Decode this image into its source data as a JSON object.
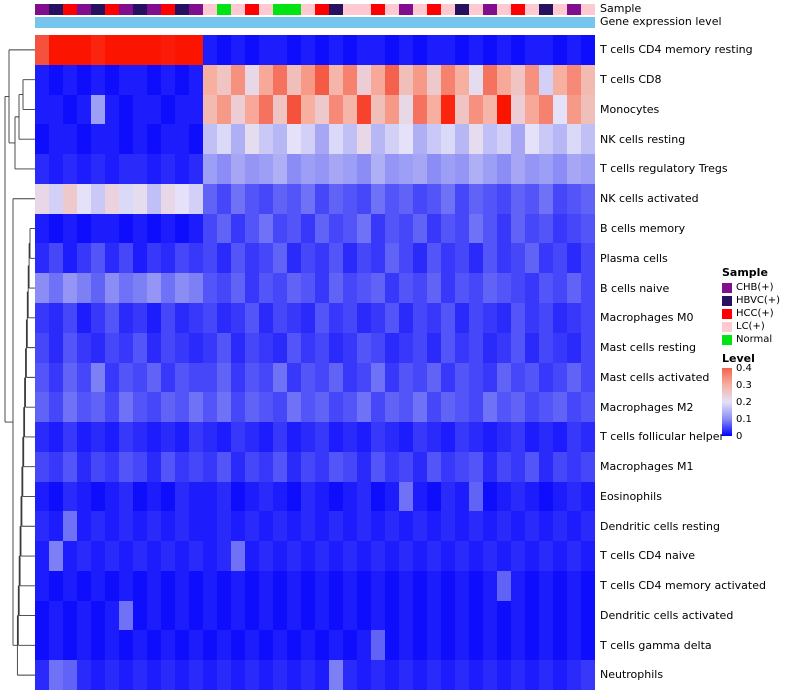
{
  "annotations": {
    "sample_label": "Sample",
    "gene_expression_label": "Gene expression level",
    "gene_expression_color": "#76C5EC"
  },
  "legend": {
    "sample": {
      "title": "Sample",
      "items": [
        {
          "label": "CHB(+)",
          "color": "#800E8E"
        },
        {
          "label": "HBVC(+)",
          "color": "#26105F"
        },
        {
          "label": "HCC(+)",
          "color": "#FF0000"
        },
        {
          "label": "LC(+)",
          "color": "#FFC9D2"
        },
        {
          "label": "Normal",
          "color": "#00E413"
        }
      ]
    },
    "level": {
      "title": "Level",
      "ticks": [
        "0.4",
        "0.3",
        "0.2",
        "0.1",
        "0"
      ]
    }
  },
  "chart_data": {
    "type": "heatmap",
    "title": "",
    "rows": [
      "T cells CD4 memory resting",
      "T cells CD8",
      "Monocytes",
      "NK cells resting",
      "T cells regulatory  Tregs",
      "NK cells activated",
      "B cells memory",
      "Plasma cells",
      "B cells naive",
      "Macrophages M0",
      "Mast cells resting",
      "Mast cells activated",
      "Macrophages M2",
      "T cells follicular helper",
      "Macrophages M1",
      "Eosinophils",
      "Dendritic cells resting",
      "T cells CD4 naive",
      "T cells CD4 memory activated",
      "Dendritic cells activated",
      "T cells gamma delta",
      "Neutrophils"
    ],
    "column_samples": [
      "CHB(+)",
      "HBVC(+)",
      "HCC(+)",
      "CHB(+)",
      "HBVC(+)",
      "HCC(+)",
      "CHB(+)",
      "HBVC(+)",
      "CHB(+)",
      "HCC(+)",
      "HBVC(+)",
      "CHB(+)",
      "LC(+)",
      "Normal",
      "LC(+)",
      "HCC(+)",
      "LC(+)",
      "Normal",
      "Normal",
      "LC(+)",
      "HCC(+)",
      "HBVC(+)",
      "LC(+)",
      "LC(+)",
      "HCC(+)",
      "LC(+)",
      "CHB(+)",
      "LC(+)",
      "HCC(+)",
      "LC(+)",
      "HBVC(+)",
      "LC(+)",
      "CHB(+)",
      "LC(+)",
      "HCC(+)",
      "LC(+)",
      "HBVC(+)",
      "LC(+)",
      "CHB(+)",
      "LC(+)"
    ],
    "color_scale": {
      "domain": [
        0,
        0.5
      ],
      "stops": [
        {
          "value": 0.0,
          "color": "#0000FE"
        },
        {
          "value": 0.1,
          "color": "#8B8DF4"
        },
        {
          "value": 0.2,
          "color": "#E4E1F8"
        },
        {
          "value": 0.3,
          "color": "#F7B0A0"
        },
        {
          "value": 0.4,
          "color": "#F4624D"
        },
        {
          "value": 0.5,
          "color": "#FB1400"
        }
      ]
    },
    "values": [
      [
        0.42,
        0.5,
        0.52,
        0.5,
        0.48,
        0.51,
        0.53,
        0.5,
        0.52,
        0.49,
        0.5,
        0.51,
        0.02,
        0.01,
        0.02,
        0.01,
        0.02,
        0.02,
        0.01,
        0.02,
        0.01,
        0.02,
        0.01,
        0.02,
        0.02,
        0.01,
        0.02,
        0.01,
        0.02,
        0.02,
        0.01,
        0.02,
        0.01,
        0.02,
        0.01,
        0.02,
        0.02,
        0.01,
        0.02,
        0.01
      ],
      [
        0.02,
        0.01,
        0.02,
        0.01,
        0.02,
        0.01,
        0.02,
        0.02,
        0.01,
        0.02,
        0.01,
        0.02,
        0.3,
        0.26,
        0.34,
        0.22,
        0.31,
        0.38,
        0.27,
        0.33,
        0.41,
        0.29,
        0.36,
        0.24,
        0.31,
        0.4,
        0.27,
        0.33,
        0.25,
        0.36,
        0.3,
        0.21,
        0.38,
        0.31,
        0.26,
        0.34,
        0.18,
        0.3,
        0.35,
        0.28
      ],
      [
        0.02,
        0.02,
        0.01,
        0.02,
        0.12,
        0.02,
        0.01,
        0.02,
        0.02,
        0.01,
        0.02,
        0.02,
        0.28,
        0.33,
        0.24,
        0.31,
        0.38,
        0.26,
        0.42,
        0.3,
        0.25,
        0.35,
        0.29,
        0.44,
        0.27,
        0.33,
        0.22,
        0.38,
        0.3,
        0.48,
        0.26,
        0.34,
        0.29,
        0.5,
        0.24,
        0.31,
        0.36,
        0.2,
        0.33,
        0.27
      ],
      [
        0.01,
        0.02,
        0.02,
        0.01,
        0.02,
        0.02,
        0.01,
        0.02,
        0.01,
        0.02,
        0.02,
        0.01,
        0.16,
        0.19,
        0.14,
        0.21,
        0.17,
        0.15,
        0.2,
        0.18,
        0.13,
        0.19,
        0.16,
        0.22,
        0.15,
        0.18,
        0.2,
        0.14,
        0.17,
        0.19,
        0.15,
        0.21,
        0.16,
        0.18,
        0.13,
        0.2,
        0.17,
        0.15,
        0.19,
        0.16
      ],
      [
        0.03,
        0.02,
        0.03,
        0.02,
        0.03,
        0.02,
        0.03,
        0.03,
        0.02,
        0.03,
        0.02,
        0.03,
        0.12,
        0.1,
        0.13,
        0.11,
        0.12,
        0.14,
        0.1,
        0.12,
        0.11,
        0.13,
        0.12,
        0.1,
        0.14,
        0.11,
        0.12,
        0.13,
        0.1,
        0.12,
        0.11,
        0.14,
        0.12,
        0.1,
        0.13,
        0.11,
        0.12,
        0.1,
        0.13,
        0.12
      ],
      [
        0.22,
        0.18,
        0.25,
        0.2,
        0.17,
        0.23,
        0.19,
        0.21,
        0.16,
        0.22,
        0.2,
        0.18,
        0.07,
        0.05,
        0.08,
        0.06,
        0.05,
        0.07,
        0.06,
        0.08,
        0.05,
        0.07,
        0.06,
        0.05,
        0.08,
        0.06,
        0.07,
        0.05,
        0.06,
        0.08,
        0.05,
        0.07,
        0.06,
        0.05,
        0.07,
        0.06,
        0.08,
        0.05,
        0.06,
        0.07
      ],
      [
        0.02,
        0.01,
        0.02,
        0.01,
        0.02,
        0.02,
        0.01,
        0.02,
        0.01,
        0.02,
        0.01,
        0.02,
        0.05,
        0.07,
        0.04,
        0.06,
        0.08,
        0.05,
        0.06,
        0.04,
        0.07,
        0.05,
        0.06,
        0.08,
        0.04,
        0.06,
        0.05,
        0.07,
        0.04,
        0.06,
        0.05,
        0.08,
        0.06,
        0.04,
        0.07,
        0.05,
        0.06,
        0.04,
        0.05,
        0.06
      ],
      [
        0.03,
        0.05,
        0.02,
        0.04,
        0.06,
        0.03,
        0.05,
        0.02,
        0.04,
        0.03,
        0.05,
        0.04,
        0.05,
        0.03,
        0.06,
        0.04,
        0.05,
        0.07,
        0.03,
        0.05,
        0.04,
        0.06,
        0.03,
        0.05,
        0.04,
        0.07,
        0.05,
        0.03,
        0.06,
        0.04,
        0.05,
        0.03,
        0.06,
        0.04,
        0.05,
        0.07,
        0.04,
        0.05,
        0.03,
        0.05
      ],
      [
        0.1,
        0.08,
        0.11,
        0.09,
        0.07,
        0.1,
        0.08,
        0.09,
        0.11,
        0.08,
        0.1,
        0.09,
        0.06,
        0.05,
        0.07,
        0.04,
        0.06,
        0.05,
        0.07,
        0.06,
        0.04,
        0.07,
        0.05,
        0.06,
        0.07,
        0.04,
        0.06,
        0.05,
        0.07,
        0.04,
        0.06,
        0.05,
        0.07,
        0.06,
        0.05,
        0.04,
        0.06,
        0.05,
        0.07,
        0.05
      ],
      [
        0.04,
        0.03,
        0.05,
        0.02,
        0.04,
        0.06,
        0.03,
        0.04,
        0.02,
        0.05,
        0.03,
        0.04,
        0.05,
        0.03,
        0.04,
        0.06,
        0.03,
        0.05,
        0.04,
        0.03,
        0.06,
        0.04,
        0.05,
        0.03,
        0.04,
        0.06,
        0.03,
        0.05,
        0.04,
        0.06,
        0.03,
        0.05,
        0.04,
        0.03,
        0.06,
        0.04,
        0.05,
        0.03,
        0.04,
        0.05
      ],
      [
        0.05,
        0.03,
        0.06,
        0.04,
        0.03,
        0.05,
        0.04,
        0.06,
        0.03,
        0.05,
        0.04,
        0.03,
        0.04,
        0.06,
        0.03,
        0.05,
        0.04,
        0.03,
        0.06,
        0.04,
        0.05,
        0.03,
        0.04,
        0.06,
        0.05,
        0.03,
        0.04,
        0.05,
        0.03,
        0.06,
        0.04,
        0.05,
        0.03,
        0.04,
        0.06,
        0.03,
        0.05,
        0.04,
        0.03,
        0.05
      ],
      [
        0.06,
        0.04,
        0.07,
        0.05,
        0.09,
        0.04,
        0.06,
        0.05,
        0.07,
        0.04,
        0.06,
        0.05,
        0.05,
        0.07,
        0.04,
        0.06,
        0.05,
        0.08,
        0.04,
        0.06,
        0.05,
        0.07,
        0.04,
        0.05,
        0.08,
        0.04,
        0.06,
        0.05,
        0.07,
        0.04,
        0.06,
        0.05,
        0.04,
        0.07,
        0.05,
        0.06,
        0.04,
        0.05,
        0.07,
        0.05
      ],
      [
        0.07,
        0.05,
        0.08,
        0.06,
        0.07,
        0.05,
        0.08,
        0.06,
        0.05,
        0.07,
        0.06,
        0.08,
        0.06,
        0.08,
        0.05,
        0.07,
        0.06,
        0.05,
        0.08,
        0.06,
        0.07,
        0.05,
        0.06,
        0.08,
        0.05,
        0.07,
        0.06,
        0.08,
        0.05,
        0.07,
        0.06,
        0.05,
        0.08,
        0.06,
        0.07,
        0.05,
        0.06,
        0.07,
        0.05,
        0.06
      ],
      [
        0.03,
        0.02,
        0.04,
        0.02,
        0.03,
        0.02,
        0.04,
        0.03,
        0.02,
        0.03,
        0.02,
        0.04,
        0.03,
        0.02,
        0.04,
        0.03,
        0.02,
        0.04,
        0.02,
        0.03,
        0.04,
        0.02,
        0.03,
        0.02,
        0.04,
        0.03,
        0.02,
        0.04,
        0.03,
        0.02,
        0.04,
        0.03,
        0.02,
        0.03,
        0.04,
        0.02,
        0.03,
        0.02,
        0.04,
        0.03
      ],
      [
        0.05,
        0.04,
        0.06,
        0.03,
        0.05,
        0.04,
        0.06,
        0.05,
        0.03,
        0.06,
        0.04,
        0.05,
        0.04,
        0.06,
        0.03,
        0.05,
        0.04,
        0.06,
        0.03,
        0.05,
        0.04,
        0.06,
        0.05,
        0.03,
        0.06,
        0.04,
        0.05,
        0.03,
        0.06,
        0.04,
        0.05,
        0.06,
        0.03,
        0.05,
        0.04,
        0.06,
        0.03,
        0.05,
        0.04,
        0.05
      ],
      [
        0.02,
        0.01,
        0.03,
        0.02,
        0.01,
        0.02,
        0.03,
        0.01,
        0.02,
        0.01,
        0.03,
        0.02,
        0.02,
        0.03,
        0.01,
        0.02,
        0.03,
        0.02,
        0.01,
        0.03,
        0.02,
        0.01,
        0.02,
        0.03,
        0.01,
        0.02,
        0.08,
        0.02,
        0.01,
        0.03,
        0.02,
        0.07,
        0.01,
        0.02,
        0.03,
        0.02,
        0.01,
        0.02,
        0.03,
        0.02
      ],
      [
        0.03,
        0.02,
        0.08,
        0.02,
        0.03,
        0.02,
        0.03,
        0.02,
        0.03,
        0.02,
        0.03,
        0.02,
        0.02,
        0.03,
        0.02,
        0.03,
        0.02,
        0.03,
        0.02,
        0.03,
        0.02,
        0.03,
        0.02,
        0.03,
        0.02,
        0.03,
        0.02,
        0.03,
        0.02,
        0.03,
        0.02,
        0.03,
        0.02,
        0.03,
        0.02,
        0.03,
        0.02,
        0.03,
        0.02,
        0.03
      ],
      [
        0.02,
        0.09,
        0.02,
        0.03,
        0.02,
        0.03,
        0.02,
        0.03,
        0.02,
        0.03,
        0.02,
        0.03,
        0.02,
        0.03,
        0.08,
        0.02,
        0.03,
        0.02,
        0.03,
        0.02,
        0.03,
        0.02,
        0.03,
        0.02,
        0.03,
        0.02,
        0.03,
        0.02,
        0.03,
        0.02,
        0.03,
        0.02,
        0.03,
        0.02,
        0.03,
        0.02,
        0.03,
        0.02,
        0.03,
        0.02
      ],
      [
        0.02,
        0.01,
        0.02,
        0.01,
        0.02,
        0.01,
        0.02,
        0.01,
        0.02,
        0.01,
        0.02,
        0.01,
        0.02,
        0.01,
        0.02,
        0.01,
        0.02,
        0.01,
        0.02,
        0.01,
        0.02,
        0.01,
        0.02,
        0.01,
        0.02,
        0.01,
        0.02,
        0.01,
        0.02,
        0.01,
        0.02,
        0.01,
        0.02,
        0.07,
        0.02,
        0.01,
        0.02,
        0.01,
        0.02,
        0.01
      ],
      [
        0.01,
        0.02,
        0.01,
        0.02,
        0.01,
        0.02,
        0.08,
        0.01,
        0.02,
        0.01,
        0.02,
        0.01,
        0.02,
        0.01,
        0.02,
        0.01,
        0.02,
        0.01,
        0.02,
        0.01,
        0.02,
        0.01,
        0.02,
        0.01,
        0.02,
        0.01,
        0.02,
        0.01,
        0.02,
        0.01,
        0.02,
        0.01,
        0.02,
        0.01,
        0.02,
        0.01,
        0.02,
        0.01,
        0.02,
        0.01
      ],
      [
        0.01,
        0.02,
        0.01,
        0.02,
        0.01,
        0.02,
        0.01,
        0.02,
        0.01,
        0.02,
        0.01,
        0.02,
        0.01,
        0.02,
        0.01,
        0.02,
        0.01,
        0.02,
        0.01,
        0.02,
        0.01,
        0.02,
        0.01,
        0.02,
        0.07,
        0.01,
        0.02,
        0.01,
        0.02,
        0.01,
        0.02,
        0.01,
        0.02,
        0.01,
        0.02,
        0.01,
        0.02,
        0.01,
        0.02,
        0.01
      ],
      [
        0.03,
        0.08,
        0.07,
        0.03,
        0.02,
        0.03,
        0.02,
        0.03,
        0.02,
        0.03,
        0.02,
        0.03,
        0.02,
        0.03,
        0.02,
        0.03,
        0.02,
        0.03,
        0.02,
        0.03,
        0.02,
        0.09,
        0.03,
        0.02,
        0.03,
        0.02,
        0.03,
        0.02,
        0.03,
        0.02,
        0.03,
        0.02,
        0.03,
        0.02,
        0.03,
        0.02,
        0.03,
        0.02,
        0.03,
        0.04
      ]
    ]
  }
}
